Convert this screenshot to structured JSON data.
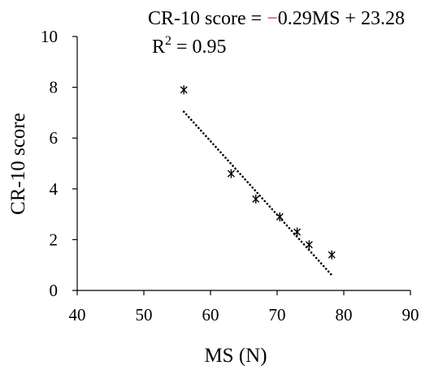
{
  "chart_data": {
    "type": "scatter",
    "xlabel": "MS (N)",
    "ylabel": "CR-10 score",
    "xlim": [
      40,
      90
    ],
    "ylim": [
      0,
      10
    ],
    "xticks": [
      40,
      50,
      60,
      70,
      80,
      90
    ],
    "yticks": [
      0,
      2,
      4,
      6,
      8,
      10
    ],
    "grid": false,
    "legend": "none",
    "marker": "asterisk",
    "colors": {
      "marker": "#000000",
      "axes": "#000000",
      "trendline": "#000000",
      "equation_minus": "#e8201c"
    },
    "points": [
      {
        "x": 56.0,
        "y": 7.9
      },
      {
        "x": 63.1,
        "y": 4.6
      },
      {
        "x": 66.8,
        "y": 3.6
      },
      {
        "x": 70.4,
        "y": 2.9
      },
      {
        "x": 73.0,
        "y": 2.3
      },
      {
        "x": 74.8,
        "y": 1.8
      },
      {
        "x": 78.2,
        "y": 1.4
      }
    ],
    "trendline": {
      "style": "dotted",
      "slope": -0.29,
      "intercept": 23.28,
      "x_range": [
        56.0,
        78.2
      ]
    },
    "annotations": {
      "equation_lhs": "CR-10 score = ",
      "equation_minus": "−",
      "equation_rhs": "0.29MS + 23.28",
      "r2_label": "R",
      "r2_sup": "2",
      "r2_value": " = 0.95"
    }
  }
}
